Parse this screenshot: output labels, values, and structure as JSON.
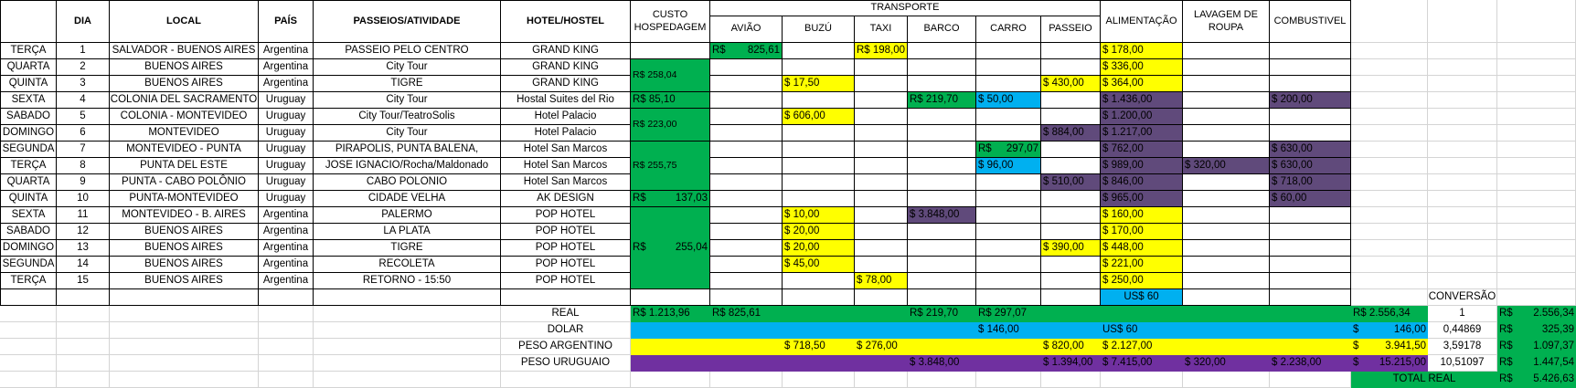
{
  "colors": {
    "yellow": "#ffff00",
    "green": "#00b050",
    "blue": "#00b0f0",
    "purple": "#7030a0",
    "dark_purple": "#604a7b",
    "border": "#000000",
    "grid": "#d4d4d4"
  },
  "headers": {
    "dia": "DIA",
    "local": "LOCAL",
    "pais": "PAÍS",
    "passeios": "PASSEIOS/ATIVIDADE",
    "hotel": "HOTEL/HOSTEL",
    "custo_line1": "CUSTO",
    "custo_line2": "HOSPEDAGEM",
    "transporte": "TRANSPORTE",
    "aviao": "AVIÃO",
    "buzu": "BUZÚ",
    "taxi": "TAXI",
    "barco": "BARCO",
    "carro": "CARRO",
    "passeio": "PASSEIO",
    "alimentacao": "ALIMENTAÇÃO",
    "lavagem_line1": "LAVAGEM DE",
    "lavagem_line2": "ROUPA",
    "combustivel": "COMBUSTIVEL"
  },
  "rows": [
    {
      "weekday": "TERÇA",
      "dia": "1",
      "local": "SALVADOR - BUENOS AIRES",
      "pais": "Argentina",
      "passeio_atividade": "PASSEIO PELO CENTRO",
      "hotel": "GRAND KING",
      "aviao_prefix": "R$",
      "aviao_amount": "825,61",
      "taxi": "R$ 198,00",
      "alimentacao": "$ 178,00"
    },
    {
      "weekday": "QUARTA",
      "dia": "2",
      "local": "BUENOS AIRES",
      "pais": "Argentina",
      "passeio_atividade": "City Tour",
      "hotel": "GRAND KING",
      "alimentacao": "$ 336,00"
    },
    {
      "weekday": "QUINTA",
      "dia": "3",
      "local": "BUENOS AIRES",
      "pais": "Argentina",
      "passeio_atividade": "TIGRE",
      "hotel": "GRAND KING",
      "buzu": "$ 17,50",
      "passeio": "$ 430,00",
      "alimentacao": "$ 364,00"
    },
    {
      "weekday": "SEXTA",
      "dia": "4",
      "local": "COLONIA DEL SACRAMENTO",
      "pais": "Uruguay",
      "passeio_atividade": "City Tour",
      "hotel": "Hostal Suites del Rio",
      "custo": "R$ 85,10",
      "barco": "R$ 219,70",
      "carro": "$ 50,00",
      "alimentacao": "$ 1.436,00",
      "combustivel": "$ 200,00"
    },
    {
      "weekday": "SABADO",
      "dia": "5",
      "local": "COLONIA - MONTEVIDEO",
      "pais": "Uruguay",
      "passeio_atividade": "City Tour/TeatroSolis",
      "hotel": "Hotel Palacio",
      "buzu": "$ 606,00",
      "alimentacao": "$ 1.200,00"
    },
    {
      "weekday": "DOMINGO",
      "dia": "6",
      "local": "MONTEVIDEO",
      "pais": "Uruguay",
      "passeio_atividade": "City Tour",
      "hotel": "Hotel Palacio",
      "passeio": "$ 884,00",
      "alimentacao": "$ 1.217,00"
    },
    {
      "weekday": "SEGUNDA",
      "dia": "7",
      "local": "MONTEVIDEO - PUNTA",
      "pais": "Uruguay",
      "passeio_atividade": "PIRAPOLIS, PUNTA BALENA,",
      "hotel": "Hotel San Marcos",
      "carro_prefix": "R$",
      "carro_amount": "297,07",
      "alimentacao": "$ 762,00",
      "combustivel": "$ 630,00"
    },
    {
      "weekday": "TERÇA",
      "dia": "8",
      "local": "PUNTA DEL ESTE",
      "pais": "Uruguay",
      "passeio_atividade": "JOSE IGNACIO/Rocha/Maldonado",
      "hotel": "Hotel San Marcos",
      "carro": "$ 96,00",
      "alimentacao": "$ 989,00",
      "lavagem": "$ 320,00",
      "combustivel": "$ 630,00"
    },
    {
      "weekday": "QUARTA",
      "dia": "9",
      "local": "PUNTA - CABO POLÔNIO",
      "pais": "Uruguay",
      "passeio_atividade": "CABO POLONIO",
      "hotel": "Hotel San Marcos",
      "passeio": "$ 510,00",
      "alimentacao": "$ 846,00",
      "combustivel": "$ 718,00"
    },
    {
      "weekday": "QUINTA",
      "dia": "10",
      "local": "PUNTA-MONTEVIDEO",
      "pais": "Uruguay",
      "passeio_atividade": "CIDADE VELHA",
      "hotel": "AK DESIGN",
      "custo_prefix": "R$",
      "custo_amount": "137,03",
      "alimentacao": "$ 965,00",
      "combustivel": "$ 60,00"
    },
    {
      "weekday": "SEXTA",
      "dia": "11",
      "local": "MONTEVIDEO - B. AIRES",
      "pais": "Argentina",
      "passeio_atividade": "PALERMO",
      "hotel": "POP HOTEL",
      "buzu": "$ 10,00",
      "barco": "$ 3.848,00",
      "alimentacao": "$ 160,00"
    },
    {
      "weekday": "SABADO",
      "dia": "12",
      "local": "BUENOS AIRES",
      "pais": "Argentina",
      "passeio_atividade": "LA PLATA",
      "hotel": "POP HOTEL",
      "buzu": "$ 20,00",
      "alimentacao": "$ 170,00"
    },
    {
      "weekday": "DOMINGO",
      "dia": "13",
      "local": "BUENOS AIRES",
      "pais": "Argentina",
      "passeio_atividade": "TIGRE",
      "hotel": "POP HOTEL",
      "buzu": "$ 20,00",
      "passeio": "$ 390,00",
      "alimentacao": "$ 448,00"
    },
    {
      "weekday": "SEGUNDA",
      "dia": "14",
      "local": "BUENOS AIRES",
      "pais": "Argentina",
      "passeio_atividade": "RECOLETA",
      "hotel": "POP HOTEL",
      "buzu": "$ 45,00",
      "alimentacao": "$ 221,00"
    },
    {
      "weekday": "TERÇA",
      "dia": "15",
      "local": "BUENOS AIRES",
      "pais": "Argentina",
      "passeio_atividade": "RETORNO - 15:50",
      "hotel": "POP HOTEL",
      "taxi": "$ 78,00",
      "alimentacao": "$ 250,00"
    }
  ],
  "merged": {
    "custo_1_3": "R$ 258,04",
    "custo_5_6": "R$ 223,00",
    "custo_7_9": "R$ 255,75",
    "custo_11_15_prefix": "R$",
    "custo_11_15_amount": "255,04"
  },
  "extra_alimentacao": "US$ 60",
  "summary": {
    "real": {
      "label": "REAL",
      "custo": "R$ 1.213,96",
      "aviao": "R$ 825,61",
      "barco": "R$ 219,70",
      "carro": "R$ 297,07",
      "total": "R$ 2.556,34",
      "rate": "1",
      "conv_prefix": "R$",
      "conv_amount": "2.556,34"
    },
    "dolar": {
      "label": "DOLAR",
      "carro": "$ 146,00",
      "alimentacao": "US$ 60",
      "total_prefix": "$",
      "total_amount": "146,00",
      "rate": "0,44869",
      "conv_prefix": "R$",
      "conv_amount": "325,39"
    },
    "peso_ar": {
      "label": "PESO ARGENTINO",
      "buzu": "$ 718,50",
      "taxi": "$ 276,00",
      "passeio": "$ 820,00",
      "alimentacao": "$ 2.127,00",
      "total_prefix": "$",
      "total_amount": "3.941,50",
      "rate": "3,59178",
      "conv_prefix": "R$",
      "conv_amount": "1.097,37"
    },
    "peso_uy": {
      "label": "PESO URUGUAIO",
      "barco": "$ 3.848,00",
      "passeio": "$ 1.394,00",
      "alimentacao": "$ 7.415,00",
      "lavagem": "$ 320,00",
      "combustivel": "$ 2.238,00",
      "total_prefix": "$",
      "total_amount": "15.215,00",
      "rate": "10,51097",
      "conv_prefix": "R$",
      "conv_amount": "1.447,54"
    }
  },
  "conversao_label": "CONVERSÃO",
  "total_real": {
    "label": "TOTAL REAL",
    "prefix": "R$",
    "amount": "5.426,63"
  }
}
